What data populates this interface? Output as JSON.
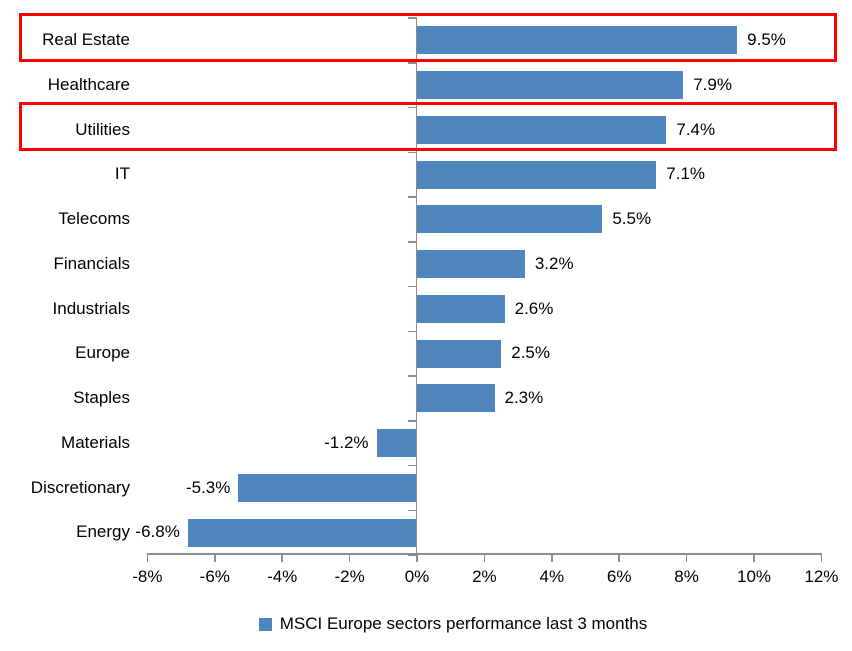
{
  "chart_data": {
    "type": "bar",
    "orientation": "horizontal",
    "title": "",
    "legend": "MSCI Europe sectors performance last 3 months",
    "legend_position": "bottom",
    "grid": false,
    "categories": [
      "Real Estate",
      "Healthcare",
      "Utilities",
      "IT",
      "Telecoms",
      "Financials",
      "Industrials",
      "Europe",
      "Staples",
      "Materials",
      "Discretionary",
      "Energy"
    ],
    "values": [
      9.5,
      7.9,
      7.4,
      7.1,
      5.5,
      3.2,
      2.6,
      2.5,
      2.3,
      -1.2,
      -5.3,
      -6.8
    ],
    "value_labels": [
      "9.5%",
      "7.9%",
      "7.4%",
      "7.1%",
      "5.5%",
      "3.2%",
      "2.6%",
      "2.5%",
      "2.3%",
      "-1.2%",
      "-5.3%",
      "-6.8%"
    ],
    "xlim": [
      -8,
      12
    ],
    "x_ticks": [
      -8,
      -6,
      -4,
      -2,
      0,
      2,
      4,
      6,
      8,
      10,
      12
    ],
    "x_tick_labels": [
      "-8%",
      "-6%",
      "-4%",
      "-2%",
      "0%",
      "2%",
      "4%",
      "6%",
      "8%",
      "10%",
      "12%"
    ],
    "xlabel": "",
    "ylabel": "",
    "bar_color": "#4f86be",
    "axis_color": "#8c8c8c",
    "text_color": "#000000",
    "highlight_color": "#ff0000",
    "highlighted_categories": [
      "Real Estate",
      "Utilities"
    ]
  }
}
